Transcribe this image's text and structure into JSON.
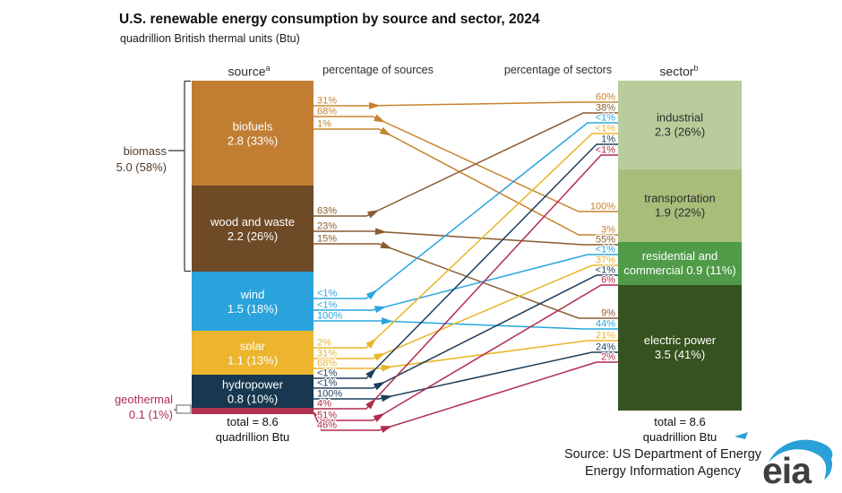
{
  "title": "U.S. renewable energy consumption by source and sector, 2024",
  "subtitle": "quadrillion British thermal units (Btu)",
  "headers": {
    "source": "source",
    "source_sup": "a",
    "pct_sources": "percentage of sources",
    "pct_sectors": "percentage of sectors",
    "sector": "sector",
    "sector_sup": "b"
  },
  "footer": {
    "source_line1": "Source: US Department of Energy",
    "source_line2": "Energy Information Agency",
    "logo_text": "eia",
    "logo_blue": "#2aa0d8",
    "logo_gray": "#3f3f3f"
  },
  "chart_data": {
    "type": "sankey",
    "unit": "quadrillion Btu",
    "total_value": 8.6,
    "total_label": {
      "line1": "total = 8.6",
      "line2": "quadrillion Btu"
    },
    "sources": [
      {
        "name": "biofuels",
        "value": 2.8,
        "pct": "33%",
        "value_label": "2.8 (33%)",
        "color": "#c17e33",
        "line_color": "#c8832f",
        "label_inside": true
      },
      {
        "name": "wood and waste",
        "value": 2.2,
        "pct": "26%",
        "value_label": "2.2 (26%)",
        "color": "#6e4a26",
        "line_color": "#8a5c30",
        "label_inside": true
      },
      {
        "name": "wind",
        "value": 1.5,
        "pct": "18%",
        "value_label": "1.5 (18%)",
        "color": "#2aa3dc",
        "line_color": "#2aa5de",
        "label_inside": true
      },
      {
        "name": "solar",
        "value": 1.1,
        "pct": "13%",
        "value_label": "1.1 (13%)",
        "color": "#ecb52d",
        "line_color": "#e9b529",
        "label_inside": true
      },
      {
        "name": "hydropower",
        "value": 0.8,
        "pct": "10%",
        "value_label": "0.8 (10%)",
        "color": "#173850",
        "line_color": "#1d3f5c",
        "label_inside": true
      },
      {
        "name": "geothermal",
        "value": 0.1,
        "pct": "1%",
        "value_label": "0.1 (1%)",
        "color": "#b03352",
        "line_color": "#b02c4d",
        "label_inside": false
      }
    ],
    "source_group": {
      "label": "biomass",
      "value_label": "5.0 (58%)",
      "spans": [
        "biofuels",
        "wood and waste"
      ],
      "text_color": "#53392c"
    },
    "sectors": [
      {
        "name": "industrial",
        "value": 2.3,
        "pct": "26%",
        "value_label": "2.3 (26%)",
        "color": "#b9cd9c",
        "text_color": "#2b2b2b"
      },
      {
        "name": "transportation",
        "value": 1.9,
        "pct": "22%",
        "value_label": "1.9 (22%)",
        "color": "#a8bd7a",
        "text_color": "#2b2b2b"
      },
      {
        "name": "residential and commercial",
        "value": 0.9,
        "pct": "11%",
        "value_label": "0.9 (11%)",
        "name_lines": [
          "residential and",
          "commercial 0.9 (11%)"
        ],
        "color": "#4f9b48",
        "text_color": "#ffffff"
      },
      {
        "name": "electric power",
        "value": 3.5,
        "pct": "41%",
        "value_label": "3.5 (41%)",
        "color": "#35521f",
        "text_color": "#ffffff"
      }
    ],
    "flows": [
      {
        "source": "biofuels",
        "sector": "industrial",
        "pct_of_source": "31%",
        "pct_of_sector": "60%"
      },
      {
        "source": "biofuels",
        "sector": "transportation",
        "pct_of_source": "68%",
        "pct_of_sector": "100%"
      },
      {
        "source": "biofuels",
        "sector": "residential and commercial",
        "pct_of_source": "1%",
        "pct_of_sector": "3%"
      },
      {
        "source": "wood and waste",
        "sector": "industrial",
        "pct_of_source": "63%",
        "pct_of_sector": "38%"
      },
      {
        "source": "wood and waste",
        "sector": "residential and commercial",
        "pct_of_source": "23%",
        "pct_of_sector": "55%"
      },
      {
        "source": "wood and waste",
        "sector": "electric power",
        "pct_of_source": "15%",
        "pct_of_sector": "9%"
      },
      {
        "source": "wind",
        "sector": "industrial",
        "pct_of_source": "<1%",
        "pct_of_sector": "<1%"
      },
      {
        "source": "wind",
        "sector": "residential and commercial",
        "pct_of_source": "<1%",
        "pct_of_sector": "<1%"
      },
      {
        "source": "wind",
        "sector": "electric power",
        "pct_of_source": "100%",
        "pct_of_sector": "44%"
      },
      {
        "source": "solar",
        "sector": "industrial",
        "pct_of_source": "2%",
        "pct_of_sector": "<1%"
      },
      {
        "source": "solar",
        "sector": "residential and commercial",
        "pct_of_source": "31%",
        "pct_of_sector": "37%"
      },
      {
        "source": "solar",
        "sector": "electric power",
        "pct_of_source": "68%",
        "pct_of_sector": "21%"
      },
      {
        "source": "hydropower",
        "sector": "industrial",
        "pct_of_source": "<1%",
        "pct_of_sector": "1%"
      },
      {
        "source": "hydropower",
        "sector": "residential and commercial",
        "pct_of_source": "<1%",
        "pct_of_sector": "<1%"
      },
      {
        "source": "hydropower",
        "sector": "electric power",
        "pct_of_source": "100%",
        "pct_of_sector": "24%"
      },
      {
        "source": "geothermal",
        "sector": "industrial",
        "pct_of_source": "4%",
        "pct_of_sector": "<1%"
      },
      {
        "source": "geothermal",
        "sector": "residential and commercial",
        "pct_of_source": "51%",
        "pct_of_sector": "6%"
      },
      {
        "source": "geothermal",
        "sector": "electric power",
        "pct_of_source": "46%",
        "pct_of_sector": "2%"
      }
    ]
  }
}
